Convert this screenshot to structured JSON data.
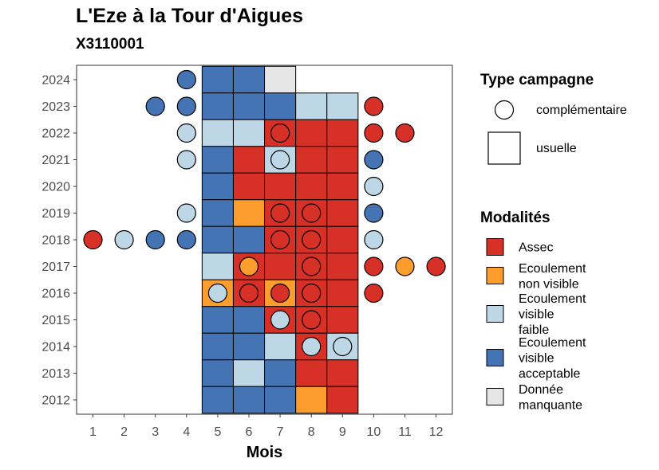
{
  "chart_data": {
    "type": "heatmap",
    "title": "L'Eze à la Tour d'Aigues",
    "subtitle": "X3110001",
    "xlabel": "Mois",
    "ylabel": "",
    "x_ticks": [
      1,
      2,
      3,
      4,
      5,
      6,
      7,
      8,
      9,
      10,
      11,
      12
    ],
    "y_ticks": [
      2012,
      2013,
      2014,
      2015,
      2016,
      2017,
      2018,
      2019,
      2020,
      2021,
      2022,
      2023,
      2024
    ],
    "grid": false,
    "legend_placement": "right",
    "legend_shape": {
      "title": "Type campagne",
      "items": [
        {
          "key": "complementaire",
          "label": "complémentaire",
          "shape": "circle"
        },
        {
          "key": "usuelle",
          "label": "usuelle",
          "shape": "square"
        }
      ]
    },
    "legend_fill": {
      "title": "Modalités",
      "items": [
        {
          "key": "A",
          "label_lines": [
            "Assec"
          ],
          "color": "#d73027"
        },
        {
          "key": "N",
          "label_lines": [
            "Ecoulement",
            "non visible"
          ],
          "color": "#fd9d2e"
        },
        {
          "key": "F",
          "label_lines": [
            "Ecoulement",
            "visible",
            "faible"
          ],
          "color": "#bed7e6"
        },
        {
          "key": "V",
          "label_lines": [
            "Ecoulement",
            "visible",
            "acceptable"
          ],
          "color": "#4574b4"
        },
        {
          "key": "M",
          "label_lines": [
            "Donnée",
            "manquante"
          ],
          "color": "#e6e6e6"
        }
      ]
    },
    "usuelle": [
      {
        "year": 2024,
        "values": {
          "5": "V",
          "6": "V",
          "7": "M"
        }
      },
      {
        "year": 2023,
        "values": {
          "5": "V",
          "6": "V",
          "7": "V",
          "8": "F",
          "9": "F"
        }
      },
      {
        "year": 2022,
        "values": {
          "5": "F",
          "6": "F",
          "7": "A",
          "8": "A",
          "9": "A"
        }
      },
      {
        "year": 2021,
        "values": {
          "5": "V",
          "6": "A",
          "7": "F",
          "8": "A",
          "9": "A"
        }
      },
      {
        "year": 2020,
        "values": {
          "5": "V",
          "6": "A",
          "7": "A",
          "8": "A",
          "9": "A"
        }
      },
      {
        "year": 2019,
        "values": {
          "5": "V",
          "6": "N",
          "7": "A",
          "8": "A",
          "9": "A"
        }
      },
      {
        "year": 2018,
        "values": {
          "5": "V",
          "6": "V",
          "7": "A",
          "8": "A",
          "9": "A"
        }
      },
      {
        "year": 2017,
        "values": {
          "5": "F",
          "6": "A",
          "7": "A",
          "8": "A",
          "9": "A"
        }
      },
      {
        "year": 2016,
        "values": {
          "5": "N",
          "6": "A",
          "7": "N",
          "8": "A",
          "9": "A"
        }
      },
      {
        "year": 2015,
        "values": {
          "5": "V",
          "6": "V",
          "7": "A",
          "8": "A",
          "9": "A"
        }
      },
      {
        "year": 2014,
        "values": {
          "5": "V",
          "6": "V",
          "7": "F",
          "8": "A",
          "9": "F"
        }
      },
      {
        "year": 2013,
        "values": {
          "5": "V",
          "6": "F",
          "7": "V",
          "8": "A",
          "9": "A"
        }
      },
      {
        "year": 2012,
        "values": {
          "5": "V",
          "6": "V",
          "7": "V",
          "8": "N",
          "9": "A"
        }
      }
    ],
    "complementaire": [
      {
        "year": 2024,
        "values": {
          "4": "V"
        }
      },
      {
        "year": 2023,
        "values": {
          "3": "V",
          "4": "V",
          "10": "A"
        }
      },
      {
        "year": 2022,
        "values": {
          "4": "F",
          "7": "A",
          "10": "A",
          "11": "A"
        }
      },
      {
        "year": 2021,
        "values": {
          "4": "F",
          "7": "F",
          "10": "V"
        }
      },
      {
        "year": 2020,
        "values": {
          "10": "F"
        }
      },
      {
        "year": 2019,
        "values": {
          "4": "F",
          "7": "A",
          "8": "A",
          "10": "V"
        }
      },
      {
        "year": 2018,
        "values": {
          "1": "A",
          "2": "F",
          "3": "V",
          "4": "V",
          "7": "A",
          "8": "A",
          "10": "F"
        }
      },
      {
        "year": 2017,
        "values": {
          "6": "N",
          "8": "A",
          "10": "A",
          "11": "N",
          "12": "A"
        }
      },
      {
        "year": 2016,
        "values": {
          "5": "F",
          "6": "A",
          "7": "A",
          "8": "A",
          "10": "A"
        }
      },
      {
        "year": 2015,
        "values": {
          "7": "F",
          "8": "A"
        }
      },
      {
        "year": 2014,
        "values": {
          "8": "F",
          "9": "F"
        }
      }
    ]
  }
}
